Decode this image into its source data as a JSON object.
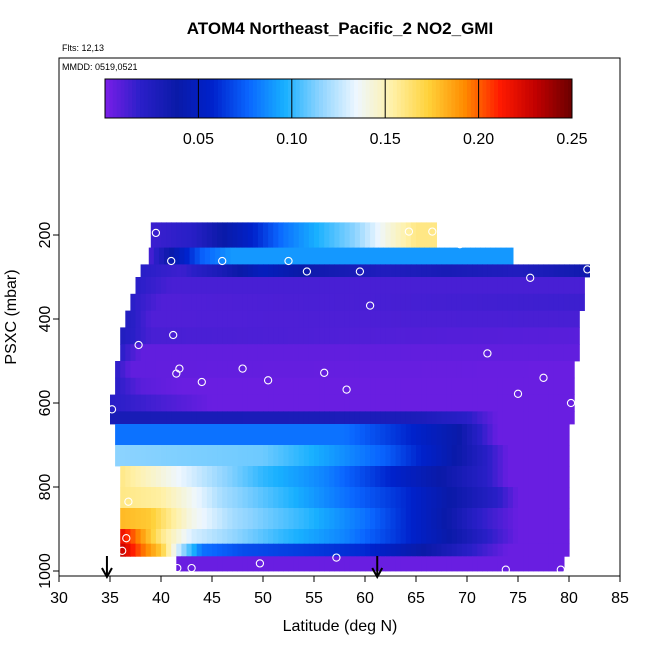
{
  "chart_data": {
    "type": "heatmap",
    "title": "ATOM4 Northeast_Pacific_2 NO2_GMI",
    "info_lines": [
      "Flts: 12,13",
      "MMDD: 0519,0521"
    ],
    "xlabel": "Latitude (deg N)",
    "ylabel": "PSXC (mbar)",
    "xlim": [
      30,
      85
    ],
    "ylim": [
      1000,
      0
    ],
    "x_ticks": [
      30,
      35,
      40,
      45,
      50,
      55,
      60,
      65,
      70,
      75,
      80,
      85
    ],
    "y_ticks": [
      200,
      400,
      600,
      800,
      1000
    ],
    "colorbar": {
      "range": [
        0,
        0.25
      ],
      "ticks": [
        0.05,
        0.1,
        0.15,
        0.2,
        0.25
      ],
      "tick_labels": [
        "0.05",
        "0.10",
        "0.15",
        "0.20",
        "0.25"
      ],
      "colors": [
        "#7a1ee8",
        "#2a1fc8",
        "#0a1aa8",
        "#0022cc",
        "#0a66ff",
        "#18b0ff",
        "#8fd4ff",
        "#eef7ff",
        "#fff1a8",
        "#ffd23a",
        "#ff8c00",
        "#ff1a00",
        "#c00000",
        "#6b0000"
      ]
    },
    "arrows_lat": [
      34.7,
      61.2
    ],
    "layers": [
      {
        "p_top": 170,
        "p_bot": 230,
        "lat_start": 39.0,
        "lat_end": 67.0,
        "grad": [
          [
            39,
            0.015
          ],
          [
            43,
            0.02
          ],
          [
            48,
            0.05
          ],
          [
            52,
            0.08
          ],
          [
            56,
            0.1
          ],
          [
            59,
            0.115
          ],
          [
            62,
            0.14
          ],
          [
            65,
            0.16
          ],
          [
            67,
            0.16
          ]
        ]
      },
      {
        "p_top": 230,
        "p_bot": 270,
        "lat_start": 38.8,
        "lat_end": 74.5,
        "grad": [
          [
            38.8,
            0.01
          ],
          [
            41,
            0.04
          ],
          [
            44,
            0.075
          ],
          [
            47,
            0.09
          ],
          [
            74.5,
            0.09
          ]
        ]
      },
      {
        "p_top": 270,
        "p_bot": 300,
        "lat_start": 38.0,
        "lat_end": 82.0,
        "grad": [
          [
            38,
            0.02
          ],
          [
            42,
            0.015
          ],
          [
            46,
            0.03
          ],
          [
            50,
            0.05
          ],
          [
            55,
            0.035
          ],
          [
            62,
            0.025
          ],
          [
            68,
            0.03
          ],
          [
            75,
            0.025
          ],
          [
            82,
            0.035
          ]
        ]
      },
      {
        "p_top": 300,
        "p_bot": 340,
        "lat_start": 37.5,
        "lat_end": 81.5,
        "grad": [
          [
            37.5,
            0.02
          ],
          [
            41,
            0.012
          ],
          [
            81.5,
            0.012
          ]
        ]
      },
      {
        "p_top": 340,
        "p_bot": 380,
        "lat_start": 37.0,
        "lat_end": 81.5,
        "grad": [
          [
            37,
            0.02
          ],
          [
            40,
            0.01
          ],
          [
            60,
            0.012
          ],
          [
            81.5,
            0.015
          ]
        ]
      },
      {
        "p_top": 380,
        "p_bot": 420,
        "lat_start": 36.5,
        "lat_end": 81.0,
        "grad": [
          [
            36.5,
            0.025
          ],
          [
            39,
            0.01
          ],
          [
            81,
            0.012
          ]
        ]
      },
      {
        "p_top": 420,
        "p_bot": 460,
        "lat_start": 36.0,
        "lat_end": 81.0,
        "grad": [
          [
            36,
            0.025
          ],
          [
            39,
            0.012
          ],
          [
            81,
            0.008
          ]
        ]
      },
      {
        "p_top": 460,
        "p_bot": 500,
        "lat_start": 36.0,
        "lat_end": 81.0,
        "grad": [
          [
            36,
            0.02
          ],
          [
            38,
            0.006
          ],
          [
            81,
            0.006
          ]
        ]
      },
      {
        "p_top": 500,
        "p_bot": 540,
        "lat_start": 35.5,
        "lat_end": 80.5,
        "grad": [
          [
            35.5,
            0.02
          ],
          [
            37,
            0.006
          ],
          [
            80.5,
            0.004
          ]
        ]
      },
      {
        "p_top": 540,
        "p_bot": 580,
        "lat_start": 35.5,
        "lat_end": 80.5,
        "grad": [
          [
            35.5,
            0.02
          ],
          [
            38,
            0.008
          ],
          [
            42,
            0.004
          ],
          [
            80.5,
            0.004
          ]
        ]
      },
      {
        "p_top": 580,
        "p_bot": 620,
        "lat_start": 35.0,
        "lat_end": 80.5,
        "grad": [
          [
            35,
            0.02
          ],
          [
            40,
            0.012
          ],
          [
            45,
            0.004
          ],
          [
            73,
            0.004
          ],
          [
            80.5,
            0.004
          ]
        ]
      },
      {
        "p_top": 620,
        "p_bot": 650,
        "lat_start": 35.0,
        "lat_end": 80.5,
        "grad": [
          [
            35,
            0.03
          ],
          [
            65,
            0.028
          ],
          [
            70,
            0.02
          ],
          [
            73,
            0.004
          ],
          [
            80.5,
            0.004
          ]
        ]
      },
      {
        "p_top": 650,
        "p_bot": 700,
        "lat_start": 35.5,
        "lat_end": 80.0,
        "grad": [
          [
            35.5,
            0.08
          ],
          [
            58,
            0.08
          ],
          [
            64,
            0.06
          ],
          [
            69,
            0.04
          ],
          [
            73,
            0.004
          ],
          [
            80,
            0.004
          ]
        ]
      },
      {
        "p_top": 700,
        "p_bot": 750,
        "lat_start": 35.5,
        "lat_end": 80.0,
        "grad": [
          [
            35.5,
            0.115
          ],
          [
            50,
            0.11
          ],
          [
            57,
            0.09
          ],
          [
            62,
            0.075
          ],
          [
            67,
            0.05
          ],
          [
            72,
            0.02
          ],
          [
            74,
            0.004
          ],
          [
            80,
            0.004
          ]
        ]
      },
      {
        "p_top": 750,
        "p_bot": 800,
        "lat_start": 36.0,
        "lat_end": 80.0,
        "grad": [
          [
            36,
            0.16
          ],
          [
            44,
            0.125
          ],
          [
            50,
            0.1
          ],
          [
            56,
            0.085
          ],
          [
            62,
            0.06
          ],
          [
            67,
            0.04
          ],
          [
            72,
            0.02
          ],
          [
            74,
            0.004
          ],
          [
            80,
            0.004
          ]
        ]
      },
      {
        "p_top": 800,
        "p_bot": 850,
        "lat_start": 36.0,
        "lat_end": 80.0,
        "grad": [
          [
            36,
            0.16
          ],
          [
            40,
            0.155
          ],
          [
            46,
            0.12
          ],
          [
            52,
            0.1
          ],
          [
            58,
            0.08
          ],
          [
            64,
            0.06
          ],
          [
            68,
            0.04
          ],
          [
            73,
            0.02
          ],
          [
            75,
            0.004
          ],
          [
            80,
            0.004
          ]
        ]
      },
      {
        "p_top": 850,
        "p_bot": 900,
        "lat_start": 36.0,
        "lat_end": 80.0,
        "grad": [
          [
            36,
            0.18
          ],
          [
            39,
            0.175
          ],
          [
            43,
            0.14
          ],
          [
            47,
            0.12
          ],
          [
            54,
            0.1
          ],
          [
            60,
            0.08
          ],
          [
            66,
            0.05
          ],
          [
            71,
            0.02
          ],
          [
            75,
            0.004
          ],
          [
            80,
            0.004
          ]
        ]
      },
      {
        "p_top": 900,
        "p_bot": 935,
        "lat_start": 36.0,
        "lat_end": 80.0,
        "grad": [
          [
            36,
            0.22
          ],
          [
            38,
            0.19
          ],
          [
            40,
            0.16
          ],
          [
            43,
            0.13
          ],
          [
            46,
            0.12
          ],
          [
            52,
            0.1
          ],
          [
            58,
            0.085
          ],
          [
            64,
            0.06
          ],
          [
            70,
            0.03
          ],
          [
            75,
            0.004
          ],
          [
            80,
            0.004
          ]
        ]
      },
      {
        "p_top": 935,
        "p_bot": 965,
        "lat_start": 36.0,
        "lat_end": 80.0,
        "grad": [
          [
            36,
            0.23
          ],
          [
            38,
            0.2
          ],
          [
            40,
            0.175
          ],
          [
            42,
            0.12
          ],
          [
            44,
            0.08
          ],
          [
            48,
            0.07
          ],
          [
            60,
            0.06
          ],
          [
            68,
            0.03
          ],
          [
            74,
            0.004
          ],
          [
            80,
            0.004
          ]
        ]
      },
      {
        "p_top": 965,
        "p_bot": 1000,
        "lat_start": 41.5,
        "lat_end": 79.5,
        "grad": [
          [
            41.5,
            0.004
          ],
          [
            79.5,
            0.004
          ]
        ]
      }
    ],
    "sample_points": [
      [
        39.5,
        195
      ],
      [
        41.0,
        262
      ],
      [
        46.0,
        262
      ],
      [
        52.5,
        262
      ],
      [
        54.3,
        287
      ],
      [
        59.5,
        287
      ],
      [
        64.3,
        192
      ],
      [
        66.6,
        192
      ],
      [
        69.3,
        222
      ],
      [
        76.2,
        302
      ],
      [
        81.8,
        282
      ],
      [
        60.5,
        368
      ],
      [
        41.2,
        438
      ],
      [
        37.8,
        462
      ],
      [
        72.0,
        482
      ],
      [
        41.8,
        518
      ],
      [
        48.0,
        518
      ],
      [
        41.5,
        530
      ],
      [
        56.0,
        528
      ],
      [
        44.0,
        550
      ],
      [
        50.5,
        546
      ],
      [
        58.2,
        568
      ],
      [
        77.5,
        540
      ],
      [
        75.0,
        578
      ],
      [
        80.2,
        600
      ],
      [
        35.2,
        615
      ],
      [
        36.8,
        835
      ],
      [
        36.6,
        922
      ],
      [
        36.2,
        952
      ],
      [
        41.6,
        993
      ],
      [
        43.0,
        993
      ],
      [
        49.7,
        982
      ],
      [
        57.2,
        968
      ],
      [
        73.8,
        997
      ],
      [
        79.2,
        997
      ]
    ]
  }
}
